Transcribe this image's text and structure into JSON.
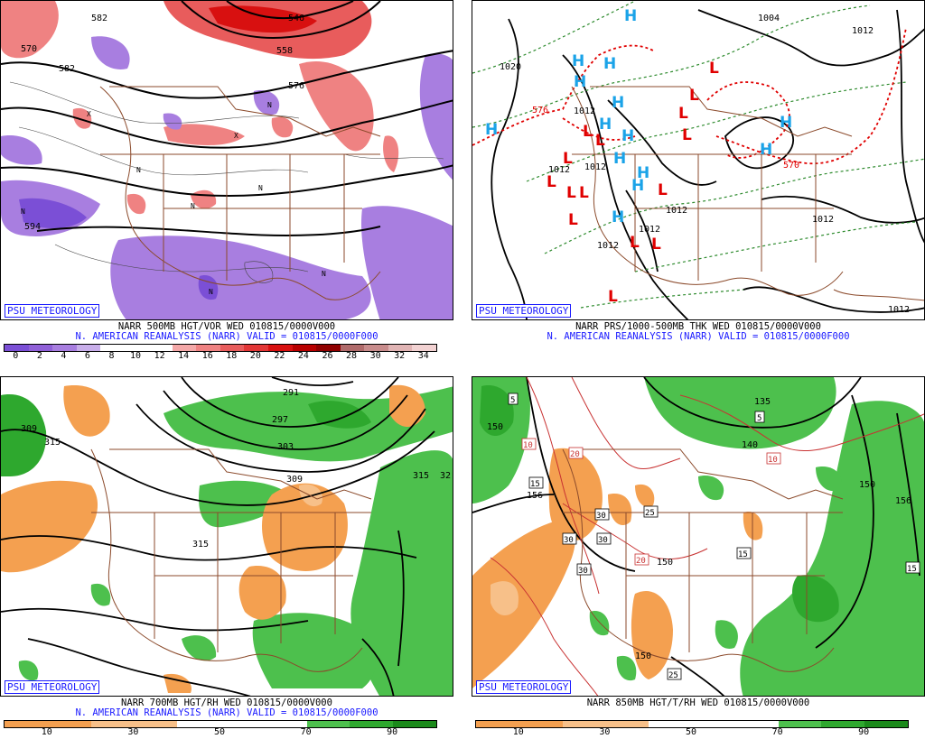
{
  "panels": [
    {
      "id": "p1",
      "badge": "PSU METEOROLOGY",
      "caption_line1": "NARR 500MB HGT/VOR WED 010815/0000V000",
      "caption_line2": "N. AMERICAN REANALYSIS (NARR) VALID = 010815/0000F000",
      "colorbar": {
        "colors": [
          "#7b4fd6",
          "#9060d8",
          "#a87ee0",
          "#c8aeea",
          "#ffffff",
          "#ffffff",
          "#ffffff",
          "#f4a8a8",
          "#ef8282",
          "#e85c5c",
          "#e23636",
          "#d81010",
          "#b80000",
          "#900000",
          "#b06b6b",
          "#c88c8c",
          "#e0b4b4",
          "#f2d2d2"
        ],
        "labels": [
          "0",
          "2",
          "4",
          "6",
          "8",
          "10",
          "12",
          "14",
          "16",
          "18",
          "20",
          "22",
          "24",
          "26",
          "28",
          "30",
          "32",
          "34"
        ]
      },
      "contour_labels": [
        "582",
        "570",
        "546",
        "558",
        "582",
        "576",
        "594"
      ]
    },
    {
      "id": "p2",
      "badge": "PSU METEOROLOGY",
      "caption_line1": "NARR PRS/1000-500MB THK WED 010815/0000V000",
      "caption_line2": "N. AMERICAN REANALYSIS (NARR) VALID = 010815/0000F000",
      "contour_labels": [
        "1020",
        "1004",
        "1012",
        "1012",
        "1012",
        "1012",
        "1012",
        "1012",
        "1012",
        "1012",
        "1012",
        "576",
        "570"
      ],
      "high_letter": "H",
      "low_letter": "L"
    },
    {
      "id": "p3",
      "badge": "PSU METEOROLOGY",
      "caption_line1": "NARR 700MB HGT/RH WED 010815/0000V000",
      "caption_line2": "N. AMERICAN REANALYSIS (NARR) VALID = 010815/0000F000",
      "colorbar": {
        "colors": [
          "#f4a050",
          "#f4a050",
          "#f7c089",
          "#f7c089",
          "#ffffff",
          "#ffffff",
          "#ffffff",
          "#4dc04d",
          "#2ea82e",
          "#1b8a1b"
        ],
        "labels": [
          "10",
          "30",
          "50",
          "70",
          "90"
        ]
      },
      "contour_labels": [
        "291",
        "297",
        "303",
        "309",
        "315",
        "315",
        "309",
        "315",
        "32"
      ]
    },
    {
      "id": "p4",
      "badge": "PSU METEOROLOGY",
      "caption_line1": "NARR 850MB HGT/T/RH WED 010815/0000V000",
      "caption_line2": "",
      "colorbar": {
        "colors": [
          "#f4a050",
          "#f4a050",
          "#f7c089",
          "#f7c089",
          "#ffffff",
          "#ffffff",
          "#ffffff",
          "#4dc04d",
          "#2ea82e",
          "#1b8a1b"
        ],
        "labels": [
          "10",
          "30",
          "50",
          "70",
          "90"
        ]
      },
      "contour_labels": [
        "135",
        "150",
        "156",
        "150",
        "150",
        "150",
        "156",
        "140"
      ],
      "boxed_labels": [
        "5",
        "5",
        "10",
        "10",
        "15",
        "20",
        "25",
        "30",
        "30",
        "30",
        "30",
        "20",
        "15",
        "15",
        "25"
      ]
    }
  ]
}
